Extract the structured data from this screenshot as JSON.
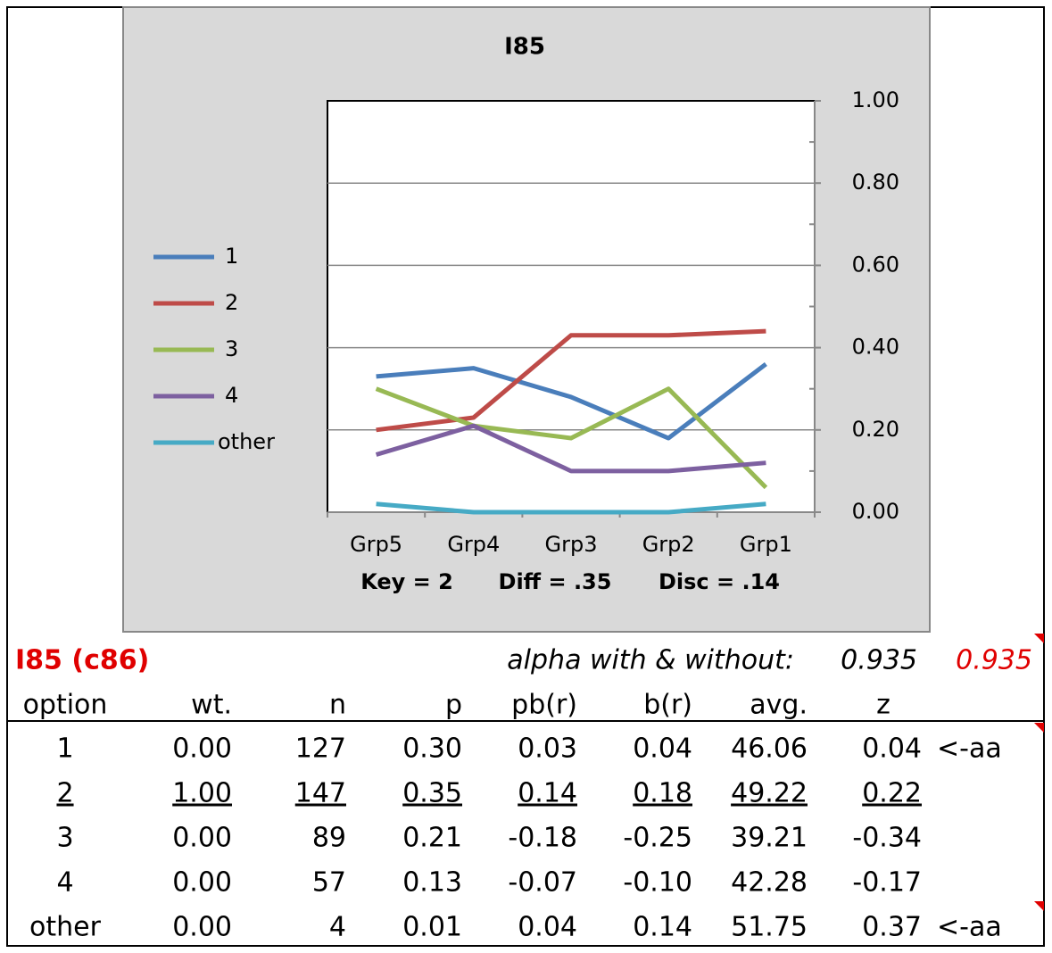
{
  "chart_data": {
    "type": "line",
    "title": "I85",
    "categories": [
      "Grp5",
      "Grp4",
      "Grp3",
      "Grp2",
      "Grp1"
    ],
    "series": [
      {
        "name": "1",
        "color": "#4a7ebb",
        "values": [
          0.33,
          0.35,
          0.28,
          0.18,
          0.36
        ]
      },
      {
        "name": "2",
        "color": "#be4b48",
        "values": [
          0.2,
          0.23,
          0.43,
          0.43,
          0.44
        ]
      },
      {
        "name": "3",
        "color": "#98b954",
        "values": [
          0.3,
          0.21,
          0.18,
          0.3,
          0.06
        ]
      },
      {
        "name": "4",
        "color": "#7d60a0",
        "values": [
          0.14,
          0.21,
          0.1,
          0.1,
          0.12
        ]
      },
      {
        "name": "other",
        "color": "#46aac5",
        "values": [
          0.02,
          0,
          0,
          0,
          0.02
        ]
      }
    ],
    "ylim": [
      0,
      1
    ],
    "yticks": [
      {
        "value": 0,
        "label": "0.00"
      },
      {
        "value": 0.2,
        "label": "0.20"
      },
      {
        "value": 0.4,
        "label": "0.40"
      },
      {
        "value": 0.6,
        "label": "0.60"
      },
      {
        "value": 0.8,
        "label": "0.80"
      },
      {
        "value": 1,
        "label": "1.00"
      }
    ],
    "grid": true,
    "legend": "left",
    "annotations": [
      "Key = 2",
      "Diff = .35",
      "Disc = .14"
    ]
  },
  "header": {
    "title": "I85 (c86)",
    "alpha_label": "alpha with & without:",
    "alpha_with": "0.935",
    "alpha_without": "0.935"
  },
  "table": {
    "columns": [
      "option",
      "wt.",
      "n",
      "p",
      "pb(r)",
      "b(r)",
      "avg.",
      "z"
    ],
    "rows": [
      {
        "cells": [
          "1",
          "0.00",
          "127",
          "0.30",
          "0.03",
          "0.04",
          "46.06",
          "0.04"
        ],
        "note": "<-aa"
      },
      {
        "cells": [
          "2",
          "1.00",
          "147",
          "0.35",
          "0.14",
          "0.18",
          "49.22",
          "0.22"
        ],
        "underlined": true
      },
      {
        "cells": [
          "3",
          "0.00",
          "89",
          "0.21",
          "-0.18",
          "-0.25",
          "39.21",
          "-0.34"
        ]
      },
      {
        "cells": [
          "4",
          "0.00",
          "57",
          "0.13",
          "-0.07",
          "-0.10",
          "42.28",
          "-0.17"
        ]
      },
      {
        "cells": [
          "other",
          "0.00",
          "4",
          "0.01",
          "0.04",
          "0.14",
          "51.75",
          "0.37"
        ],
        "note": "<-aa"
      }
    ]
  }
}
